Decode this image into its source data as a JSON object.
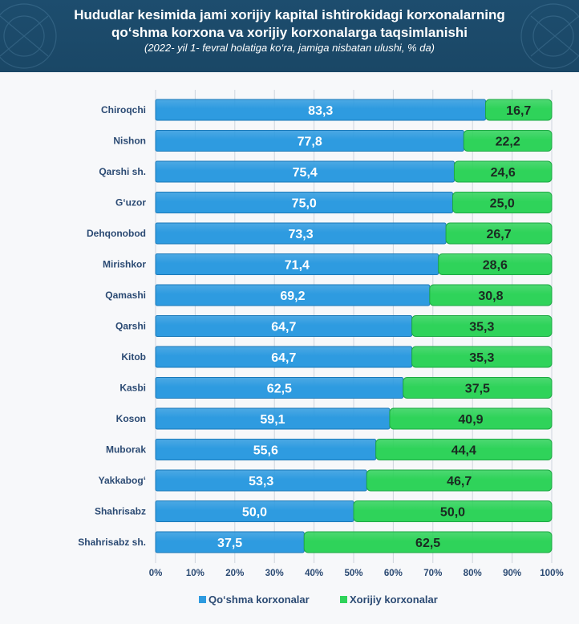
{
  "header": {
    "title": "Hududlar kesimida jami xorijiy kapital ishtirokidagi korxonalarning qo‘shma korxona va xorijiy korxonalarga taqsimlanishi",
    "title_line1": "Hududlar kesimida jami xorijiy kapital ishtirokidagi korxonalarning",
    "title_line2": "qo‘shma korxona va xorijiy korxonalarga taqsimlanishi",
    "subtitle": "(2022- yil 1- fevral holatiga ko‘ra, jamiga nisbatan ulushi, % da)",
    "bg_color": "#1d4d6e"
  },
  "chart_data": {
    "type": "bar",
    "orientation": "horizontal",
    "stacked": true,
    "percent": true,
    "title": "Hududlar kesimida jami xorijiy kapital ishtirokidagi korxonalarning qo‘shma korxona va xorijiy korxonalarga taqsimlanishi",
    "subtitle": "(2022- yil 1- fevral holatiga ko‘ra, jamiga nisbatan ulushi, % da)",
    "categories": [
      "Chiroqchi",
      "Nishon",
      "Qarshi sh.",
      "G‘uzor",
      "Dehqonobod",
      "Mirishkor",
      "Qamashi",
      "Qarshi",
      "Kitob",
      "Kasbi",
      "Koson",
      "Muborak",
      "Yakkabog‘",
      "Shahrisabz",
      "Shahrisabz sh."
    ],
    "series": [
      {
        "name": "Qo‘shma korxonalar",
        "color": "#2e9be0",
        "values": [
          83.3,
          77.8,
          75.4,
          75.0,
          73.3,
          71.4,
          69.2,
          64.7,
          64.7,
          62.5,
          59.1,
          55.6,
          53.3,
          50.0,
          37.5
        ]
      },
      {
        "name": "Xorijiy korxonalar",
        "color": "#2fd35a",
        "values": [
          16.7,
          22.2,
          24.6,
          25.0,
          26.7,
          28.6,
          30.8,
          35.3,
          35.3,
          37.5,
          40.9,
          44.4,
          46.7,
          50.0,
          62.5
        ]
      }
    ],
    "value_labels": [
      [
        "83,3",
        "77,8",
        "75,4",
        "75,0",
        "73,3",
        "71,4",
        "69,2",
        "64,7",
        "64,7",
        "62,5",
        "59,1",
        "55,6",
        "53,3",
        "50,0",
        "37,5"
      ],
      [
        "16,7",
        "22,2",
        "24,6",
        "25,0",
        "26,7",
        "28,6",
        "30,8",
        "35,3",
        "35,3",
        "37,5",
        "40,9",
        "44,4",
        "46,7",
        "50,0",
        "62,5"
      ]
    ],
    "xlim": [
      0,
      100
    ],
    "x_ticks": [
      "0%",
      "10%",
      "20%",
      "30%",
      "40%",
      "50%",
      "60%",
      "70%",
      "80%",
      "90%",
      "100%"
    ],
    "grid": true,
    "legend_position": "bottom"
  }
}
